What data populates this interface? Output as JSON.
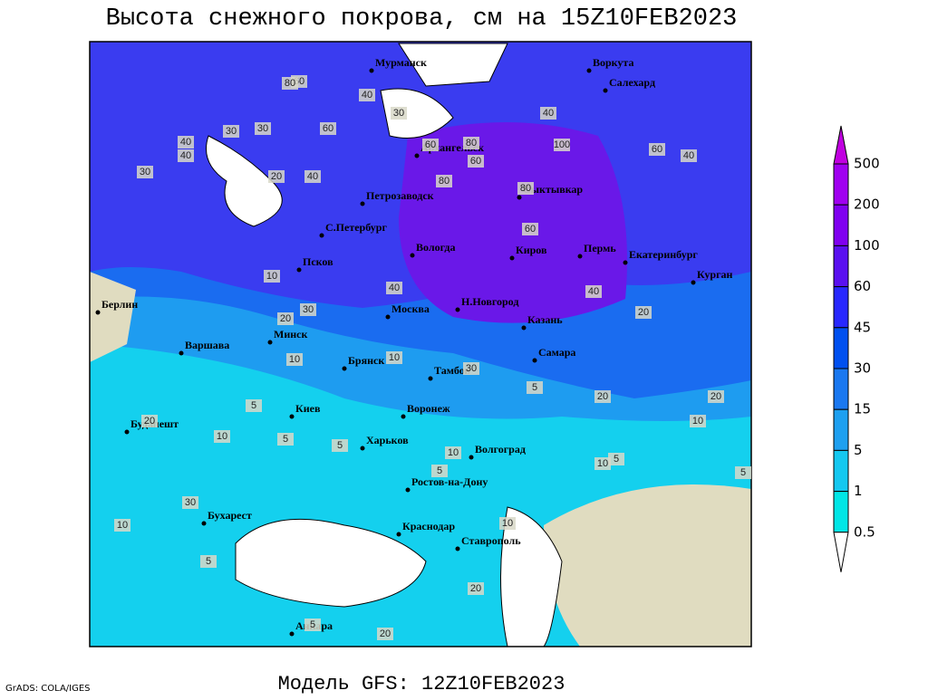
{
  "header": {
    "title": "Высота снежного покрова, см на 15Z10FEB2023"
  },
  "footer": {
    "model": "Модель GFS: 12Z10FEB2023",
    "credit": "GrADS: COLA/IGES"
  },
  "cities": [
    "Мурманск",
    "Воркута",
    "Салехард",
    "Архангельск",
    "Петрозаводск",
    "Сыктывкар",
    "С.Петербург",
    "Вологда",
    "Киров",
    "Пермь",
    "Екатеринбург",
    "Курган",
    "Псков",
    "Берлин",
    "Н.Новгород",
    "Москва",
    "Казань",
    "Минск",
    "Варшава",
    "Самара",
    "Брянск",
    "Тамбов",
    "Киев",
    "Воронеж",
    "Будапешт",
    "Харьков",
    "Волгоград",
    "Ростов-на-Дону",
    "Бухарест",
    "Краснодар",
    "Ставрополь",
    "Анкара"
  ],
  "contour_labels": [
    60,
    80,
    40,
    30,
    60,
    40,
    30,
    40,
    20,
    30,
    40,
    60,
    80,
    100,
    60,
    80,
    40,
    30,
    60,
    40,
    10,
    20,
    30,
    40,
    80,
    60,
    40,
    20,
    10,
    5,
    10,
    20,
    10,
    5,
    5,
    10,
    5,
    10,
    20,
    30,
    30,
    20,
    10,
    5,
    5,
    10,
    20,
    5,
    10,
    5,
    20,
    5
  ],
  "legend": {
    "levels": [
      500,
      200,
      100,
      60,
      45,
      30,
      15,
      5,
      1,
      0.5
    ],
    "colors": [
      "#c000e0",
      "#a000f0",
      "#8000f0",
      "#5a10f0",
      "#2828ff",
      "#0050f0",
      "#1a78f0",
      "#1ea0f0",
      "#14c8f0",
      "#00e6e6",
      "#ffffff"
    ]
  }
}
